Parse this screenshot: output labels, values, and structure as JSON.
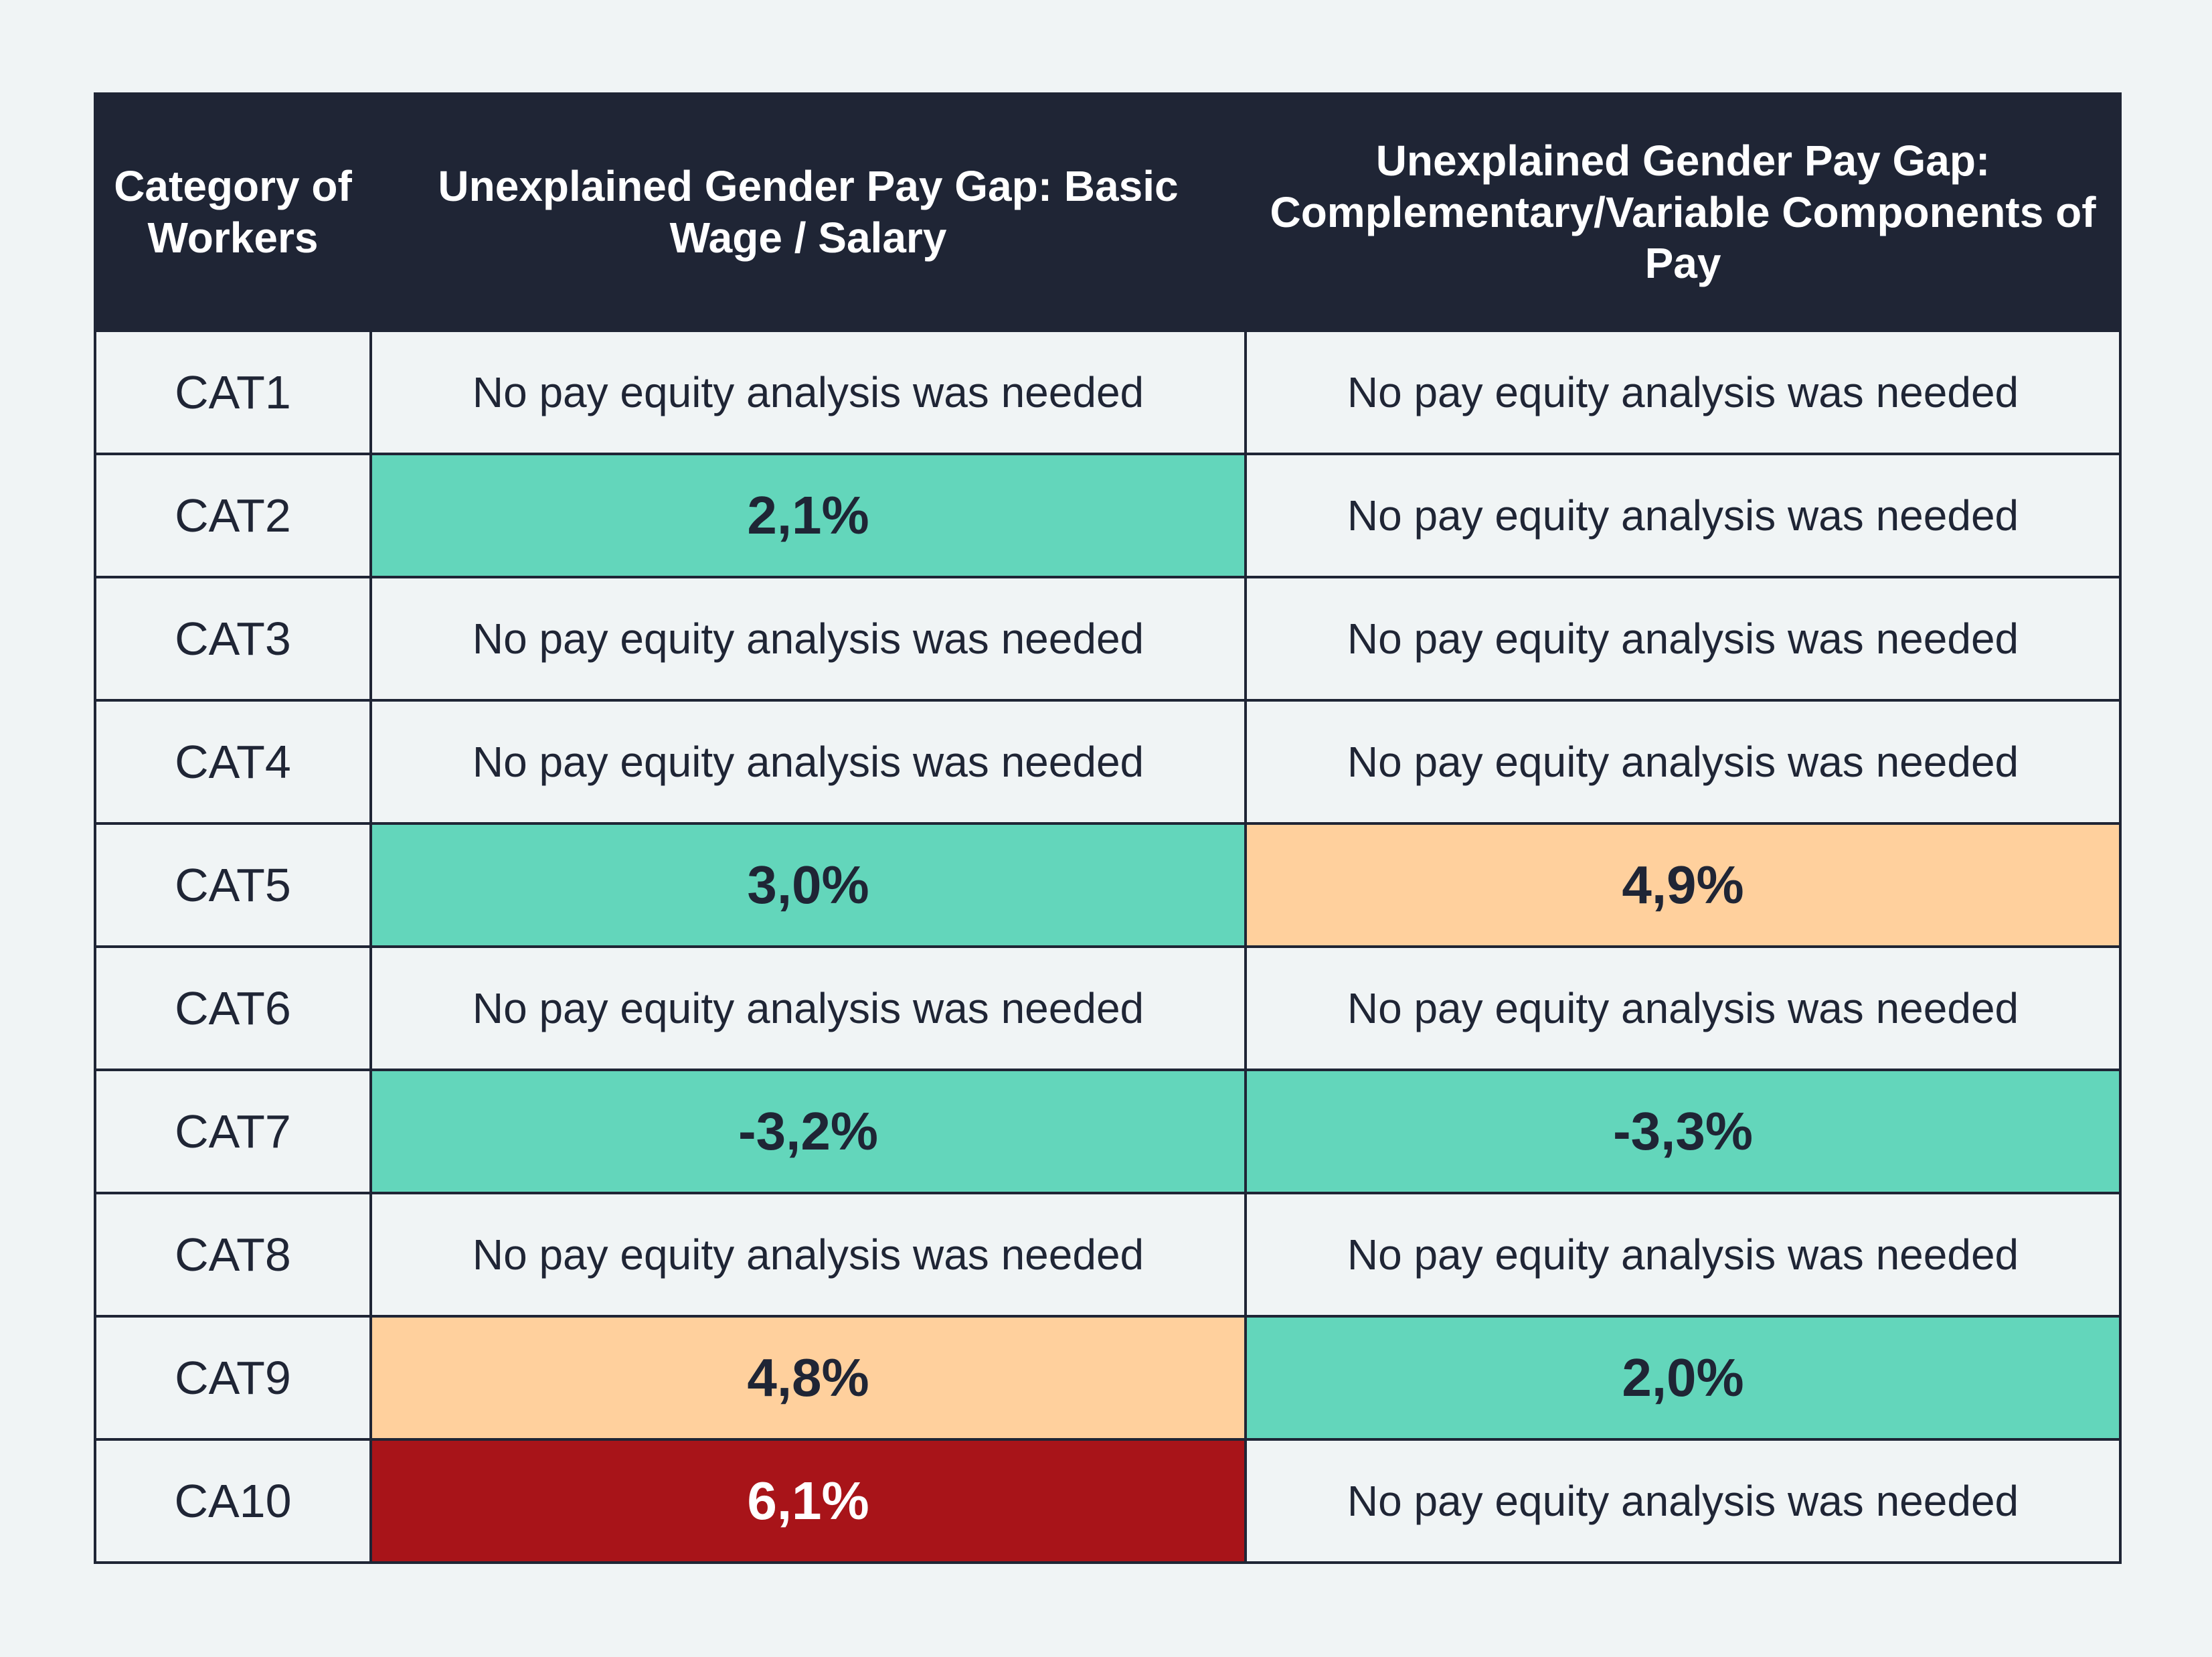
{
  "table": {
    "headers": [
      "Category of Workers",
      "Unexplained Gender Pay Gap: Basic Wage / Salary",
      "Unexplained Gender Pay Gap: Complementary/Variable Components of Pay"
    ],
    "colors": {
      "green": "#63d6bb",
      "orange": "#ffd09d",
      "red": "#a81419",
      "header": "#1f2535"
    },
    "rows": [
      {
        "category": "CAT1",
        "basic": {
          "text": "No pay equity analysis was needed",
          "status": "none"
        },
        "variable": {
          "text": "No pay equity analysis was needed",
          "status": "none"
        }
      },
      {
        "category": "CAT2",
        "basic": {
          "text": "2,1%",
          "status": "green"
        },
        "variable": {
          "text": "No pay equity analysis was needed",
          "status": "none"
        }
      },
      {
        "category": "CAT3",
        "basic": {
          "text": "No pay equity analysis was needed",
          "status": "none"
        },
        "variable": {
          "text": "No pay equity analysis was needed",
          "status": "none"
        }
      },
      {
        "category": "CAT4",
        "basic": {
          "text": "No pay equity analysis was needed",
          "status": "none"
        },
        "variable": {
          "text": "No pay equity analysis was needed",
          "status": "none"
        }
      },
      {
        "category": "CAT5",
        "basic": {
          "text": "3,0%",
          "status": "green"
        },
        "variable": {
          "text": "4,9%",
          "status": "orange"
        }
      },
      {
        "category": "CAT6",
        "basic": {
          "text": "No pay equity analysis was needed",
          "status": "none"
        },
        "variable": {
          "text": "No pay equity analysis was needed",
          "status": "none"
        }
      },
      {
        "category": "CAT7",
        "basic": {
          "text": "-3,2%",
          "status": "green"
        },
        "variable": {
          "text": "-3,3%",
          "status": "green"
        }
      },
      {
        "category": "CAT8",
        "basic": {
          "text": "No pay equity analysis was needed",
          "status": "none"
        },
        "variable": {
          "text": "No pay equity analysis was needed",
          "status": "none"
        }
      },
      {
        "category": "CAT9",
        "basic": {
          "text": "4,8%",
          "status": "orange"
        },
        "variable": {
          "text": "2,0%",
          "status": "green"
        }
      },
      {
        "category": "CA10",
        "basic": {
          "text": "6,1%",
          "status": "red"
        },
        "variable": {
          "text": "No pay equity analysis was needed",
          "status": "none"
        }
      }
    ]
  }
}
